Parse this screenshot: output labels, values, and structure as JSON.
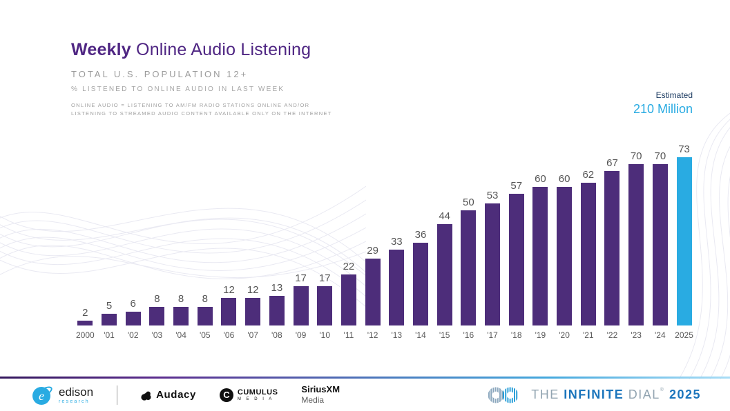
{
  "header": {
    "title_emphasis": "Weekly",
    "title_rest": " Online Audio Listening",
    "subtitle": "TOTAL U.S. POPULATION 12+",
    "measure_note": "% LISTENED TO ONLINE AUDIO IN LAST WEEK",
    "definition_line1": "ONLINE AUDIO = LISTENING TO AM/FM RADIO STATIONS ONLINE AND/OR",
    "definition_line2": "LISTENING TO STREAMED AUDIO CONTENT AVAILABLE ONLY ON THE INTERNET"
  },
  "estimate": {
    "label": "Estimated",
    "value": "210 Million"
  },
  "chart_data": {
    "type": "bar",
    "title": "Weekly Online Audio Listening",
    "xlabel": "",
    "ylabel": "% listened to online audio in last week",
    "categories": [
      "2000",
      "'01",
      "'02",
      "'03",
      "'04",
      "'05",
      "'06",
      "'07",
      "'08",
      "'09",
      "'10",
      "'11",
      "'12",
      "'13",
      "'14",
      "'15",
      "'16",
      "'17",
      "'18",
      "'19",
      "'20",
      "'21",
      "'22",
      "'23",
      "'24",
      "2025"
    ],
    "values": [
      2,
      5,
      6,
      8,
      8,
      8,
      12,
      12,
      13,
      17,
      17,
      22,
      29,
      33,
      36,
      44,
      50,
      53,
      57,
      60,
      60,
      62,
      67,
      70,
      70,
      73
    ],
    "ylim": [
      0,
      75
    ],
    "grid": false,
    "legend": "none",
    "value_labels": true,
    "bar_color": "#4D2D7A",
    "highlight_last": true,
    "highlight_color": "#29ABE2"
  },
  "footer": {
    "edison": {
      "name": "edison",
      "sub": "research"
    },
    "audacy": {
      "name": "Audacy"
    },
    "cumulus": {
      "line1": "CUMULUS",
      "line2": "M E D I A",
      "initial": "C"
    },
    "siriusxm": {
      "line1": "SiriusXM",
      "line2": "Media"
    },
    "infinite_dial": {
      "the": "THE",
      "infinite": "INFINITE",
      "dial": "DIAL",
      "reg": "®",
      "year": "2025"
    }
  },
  "colors": {
    "title_purple": "#4F2683",
    "bar_purple": "#4D2D7A",
    "highlight_blue": "#29ABE2",
    "estimated_navy": "#17375E",
    "label_gray": "#595959",
    "divider_gradient": [
      "#33175c",
      "#45a8dd"
    ]
  }
}
